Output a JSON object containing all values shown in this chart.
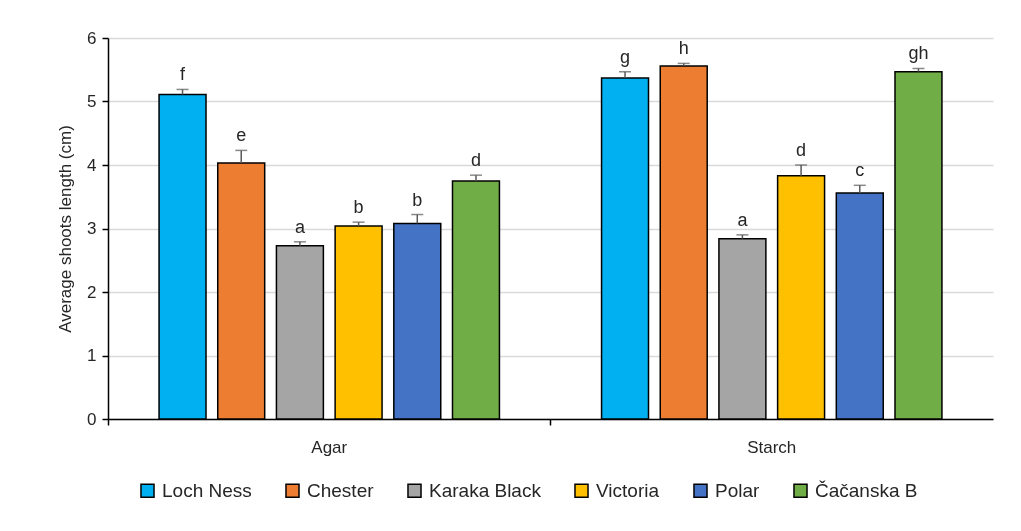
{
  "chart_data": {
    "type": "bar",
    "ylabel": "Average shoots length (cm)",
    "categories": [
      "Agar",
      "Starch"
    ],
    "ylim": [
      0,
      6
    ],
    "yticks": [
      0,
      1,
      2,
      3,
      4,
      5,
      6
    ],
    "grid": "y",
    "legend": "bottom",
    "series": [
      {
        "name": "Loch Ness",
        "color": "#00b0f0",
        "values": [
          5.11,
          5.37
        ],
        "errors": [
          [
            5.11,
            5.19
          ],
          [
            5.37,
            5.47
          ]
        ],
        "value_labels": [
          "f",
          "g"
        ]
      },
      {
        "name": "Chester",
        "color": "#ed7d31",
        "values": [
          4.03,
          5.56
        ],
        "errors": [
          [
            4.03,
            4.23
          ],
          [
            5.56,
            5.6
          ]
        ],
        "value_labels": [
          "e",
          "h"
        ]
      },
      {
        "name": "Karaka Black",
        "color": "#a5a5a5",
        "values": [
          2.73,
          2.84
        ],
        "errors": [
          [
            2.73,
            2.79
          ],
          [
            2.84,
            2.9
          ]
        ],
        "value_labels": [
          "a",
          "a"
        ]
      },
      {
        "name": "Victoria",
        "color": "#ffc000",
        "values": [
          3.04,
          3.83
        ],
        "errors": [
          [
            3.04,
            3.1
          ],
          [
            3.83,
            4.0
          ]
        ],
        "value_labels": [
          "b",
          "d"
        ]
      },
      {
        "name": "Polar",
        "color": "#4472c4",
        "values": [
          3.08,
          3.56
        ],
        "errors": [
          [
            3.08,
            3.22
          ],
          [
            3.56,
            3.68
          ]
        ],
        "value_labels": [
          "b",
          "c"
        ]
      },
      {
        "name": "Čačanska B",
        "color": "#70ad47",
        "values": [
          3.75,
          5.47
        ],
        "errors": [
          [
            3.75,
            3.84
          ],
          [
            5.47,
            5.52
          ]
        ],
        "value_labels": [
          "d",
          "gh"
        ]
      }
    ]
  }
}
